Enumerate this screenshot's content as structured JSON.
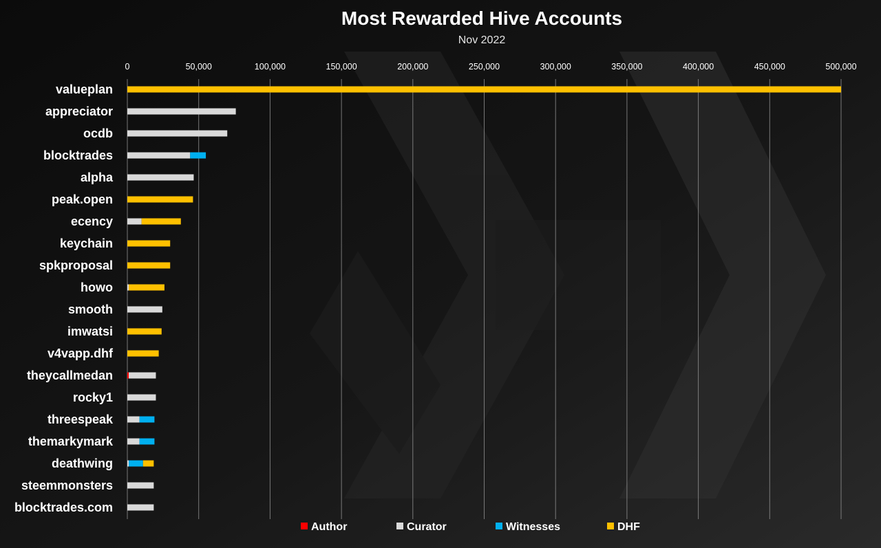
{
  "chart_data": {
    "type": "bar",
    "orientation": "horizontal",
    "stacked": true,
    "title": "Most Rewarded Hive Accounts",
    "subtitle": "Nov 2022",
    "xlim": [
      0,
      500000
    ],
    "x_ticks": [
      "0",
      "50,000",
      "100,000",
      "150,000",
      "200,000",
      "250,000",
      "300,000",
      "350,000",
      "400,000",
      "450,000",
      "500,000"
    ],
    "x_axis_position": "top",
    "grid": true,
    "legend_position": "bottom",
    "categories": [
      "valueplan",
      "appreciator",
      "ocdb",
      "blocktrades",
      "alpha",
      "peak.open",
      "ecency",
      "keychain",
      "spkproposal",
      "howo",
      "smooth",
      "imwatsi",
      "v4vapp.dhf",
      "theycallmedan",
      "rocky1",
      "threespeak",
      "themarkymark",
      "deathwing",
      "steemmonsters",
      "blocktrades.com"
    ],
    "series": [
      {
        "name": "Author",
        "color": "#ff0000",
        "values": [
          0,
          0,
          0,
          0,
          0,
          0,
          0,
          0,
          0,
          0,
          0,
          0,
          0,
          1000,
          0,
          0,
          0,
          0,
          0,
          0
        ]
      },
      {
        "name": "Curator",
        "color": "#d9d9d9",
        "values": [
          0,
          76000,
          70000,
          44000,
          46500,
          0,
          10000,
          0,
          0,
          1000,
          24500,
          0,
          0,
          19000,
          20000,
          8500,
          8500,
          1000,
          18500,
          18500
        ]
      },
      {
        "name": "Witnesses",
        "color": "#00b0f0",
        "values": [
          0,
          0,
          0,
          11000,
          0,
          0,
          0,
          0,
          0,
          0,
          0,
          0,
          0,
          0,
          0,
          10500,
          10500,
          10000,
          0,
          0
        ]
      },
      {
        "name": "DHF",
        "color": "#ffc000",
        "values": [
          500000,
          0,
          0,
          0,
          0,
          46000,
          27500,
          30000,
          30000,
          25000,
          0,
          24000,
          22000,
          0,
          0,
          0,
          0,
          7500,
          0,
          0
        ]
      }
    ]
  }
}
